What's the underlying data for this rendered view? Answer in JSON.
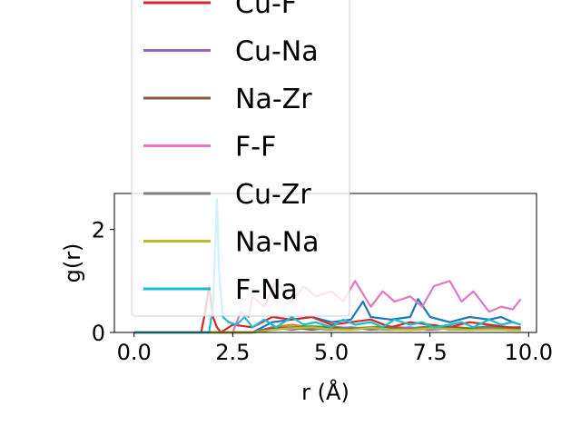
{
  "chart_data": {
    "type": "line",
    "xlabel": "r (Å)",
    "ylabel": "g(r)",
    "xlim": [
      -0.5,
      10.2
    ],
    "ylim": [
      0,
      2.7
    ],
    "xticks": [
      0.0,
      2.5,
      5.0,
      7.5,
      10.0
    ],
    "xtick_labels": [
      "0.0",
      "2.5",
      "5.0",
      "7.5",
      "10.0"
    ],
    "yticks": [
      0,
      2
    ],
    "ytick_labels": [
      "0",
      "2"
    ],
    "grid": false,
    "legend_position": "overflowing top",
    "series": [
      {
        "name": "Cu-F",
        "color": "#d62728",
        "x": [
          0,
          1.7,
          1.8,
          1.9,
          2.0,
          2.1,
          2.2,
          2.5,
          3.0,
          3.5,
          4.0,
          4.5,
          5.0,
          5.5,
          6.0,
          6.5,
          7.0,
          7.5,
          8.0,
          8.5,
          9.0,
          9.5,
          9.8
        ],
        "y": [
          0,
          0,
          0.4,
          0.9,
          0.3,
          0.1,
          0,
          0.15,
          0.1,
          0.3,
          0.25,
          0.3,
          0.15,
          0.2,
          0.25,
          0.1,
          0.2,
          0.15,
          0.1,
          0.2,
          0.15,
          0.1,
          0.1
        ]
      },
      {
        "name": "Cu-Na",
        "color": "#9467bd",
        "x": [
          0,
          3.0,
          3.5,
          4.0,
          4.5,
          5.0,
          5.5,
          6.0,
          6.5,
          7.0,
          7.5,
          8.0,
          8.5,
          9.0,
          9.5,
          9.8
        ],
        "y": [
          0,
          0,
          0.1,
          0.05,
          0.1,
          0.08,
          0.1,
          0.05,
          0.08,
          0.1,
          0.05,
          0.08,
          0.06,
          0.1,
          0.05,
          0.05
        ]
      },
      {
        "name": "Na-Zr",
        "color": "#8c564b",
        "x": [
          0,
          3.0,
          3.5,
          4.0,
          4.5,
          5.0,
          5.5,
          6.0,
          6.5,
          7.0,
          7.5,
          8.0,
          8.5,
          9.0,
          9.5,
          9.8
        ],
        "y": [
          0,
          0,
          0.08,
          0.1,
          0.05,
          0.1,
          0.06,
          0.08,
          0.1,
          0.05,
          0.07,
          0.1,
          0.06,
          0.08,
          0.05,
          0.06
        ]
      },
      {
        "name": "F-F",
        "color": "#e377c2",
        "x": [
          0,
          2.5,
          2.7,
          2.9,
          3.0,
          3.3,
          3.6,
          4.0,
          4.3,
          4.6,
          5.0,
          5.3,
          5.6,
          6.0,
          6.3,
          6.6,
          7.0,
          7.3,
          7.6,
          8.0,
          8.3,
          8.6,
          9.0,
          9.3,
          9.6,
          9.8
        ],
        "y": [
          0,
          0,
          0.4,
          0.3,
          0.7,
          0.5,
          1.0,
          0.6,
          0.9,
          0.7,
          0.8,
          0.6,
          1.0,
          0.5,
          0.8,
          0.6,
          0.7,
          0.5,
          0.9,
          1.0,
          0.6,
          0.8,
          0.4,
          0.5,
          0.45,
          0.65
        ]
      },
      {
        "name": "Cu-Zr",
        "color": "#7f7f7f",
        "x": [
          0,
          3.0,
          3.5,
          4.0,
          4.5,
          5.0,
          5.5,
          6.0,
          6.5,
          7.0,
          7.5,
          8.0,
          8.5,
          9.0,
          9.5,
          9.8
        ],
        "y": [
          0,
          0,
          0.05,
          0.1,
          0.08,
          0.05,
          0.1,
          0.07,
          0.05,
          0.08,
          0.1,
          0.06,
          0.05,
          0.08,
          0.06,
          0.05
        ]
      },
      {
        "name": "Na-Na",
        "color": "#bcbd22",
        "x": [
          0,
          3.0,
          3.5,
          4.0,
          4.5,
          5.0,
          5.5,
          6.0,
          6.5,
          7.0,
          7.5,
          8.0,
          8.5,
          9.0,
          9.5,
          9.8
        ],
        "y": [
          0,
          0,
          0.05,
          0.08,
          0.1,
          0.06,
          0.05,
          0.09,
          0.06,
          0.05,
          0.08,
          0.07,
          0.05,
          0.06,
          0.05,
          0.04
        ]
      },
      {
        "name": "F-Na",
        "color": "#17becf",
        "x": [
          0,
          1.9,
          2.0,
          2.1,
          2.15,
          2.25,
          2.4,
          2.6,
          2.8,
          3.0,
          3.3,
          3.6,
          4.0,
          4.3,
          4.6,
          5.0,
          5.3,
          5.6,
          6.0,
          6.3,
          6.6,
          7.0,
          7.3,
          7.6,
          8.0,
          8.3,
          8.6,
          9.0,
          9.3,
          9.6,
          9.8
        ],
        "y": [
          0,
          0,
          0.5,
          2.6,
          1.2,
          0.3,
          0.2,
          0.15,
          0.3,
          0.1,
          0.25,
          0.1,
          0.3,
          0.15,
          0.2,
          0.1,
          0.25,
          0.15,
          0.2,
          0.1,
          0.25,
          0.15,
          0.2,
          0.1,
          0.15,
          0.2,
          0.1,
          0.25,
          0.15,
          0.2,
          0.15
        ]
      }
    ],
    "extra_lines": [
      {
        "color": "#1f77b4",
        "x": [
          0,
          3.0,
          3.5,
          4.0,
          4.5,
          5.0,
          5.5,
          5.8,
          6.0,
          6.5,
          7.0,
          7.2,
          7.5,
          8.0,
          8.5,
          9.0,
          9.3,
          9.6,
          9.8
        ],
        "y": [
          0,
          0,
          0.2,
          0.25,
          0.3,
          0.2,
          0.25,
          0.6,
          0.3,
          0.25,
          0.3,
          0.65,
          0.3,
          0.2,
          0.3,
          0.25,
          0.3,
          0.2,
          0.15
        ]
      },
      {
        "color": "#ff7f0e",
        "x": [
          0,
          3.0,
          3.5,
          4.0,
          4.5,
          5.0,
          5.5,
          6.0,
          6.5,
          7.0,
          7.5,
          8.0,
          8.5,
          9.0,
          9.5,
          9.8
        ],
        "y": [
          0,
          0,
          0.1,
          0.15,
          0.1,
          0.12,
          0.08,
          0.1,
          0.12,
          0.08,
          0.1,
          0.12,
          0.08,
          0.1,
          0.09,
          0.1
        ]
      },
      {
        "color": "#2ca02c",
        "x": [
          0,
          3.0,
          3.5,
          4.0,
          4.5,
          5.0,
          5.5,
          6.0,
          6.5,
          7.0,
          7.5,
          8.0,
          8.5,
          9.0,
          9.5,
          9.8
        ],
        "y": [
          0,
          0,
          0.08,
          0.1,
          0.12,
          0.1,
          0.08,
          0.1,
          0.1,
          0.08,
          0.12,
          0.1,
          0.08,
          0.12,
          0.1,
          0.08
        ]
      }
    ]
  }
}
